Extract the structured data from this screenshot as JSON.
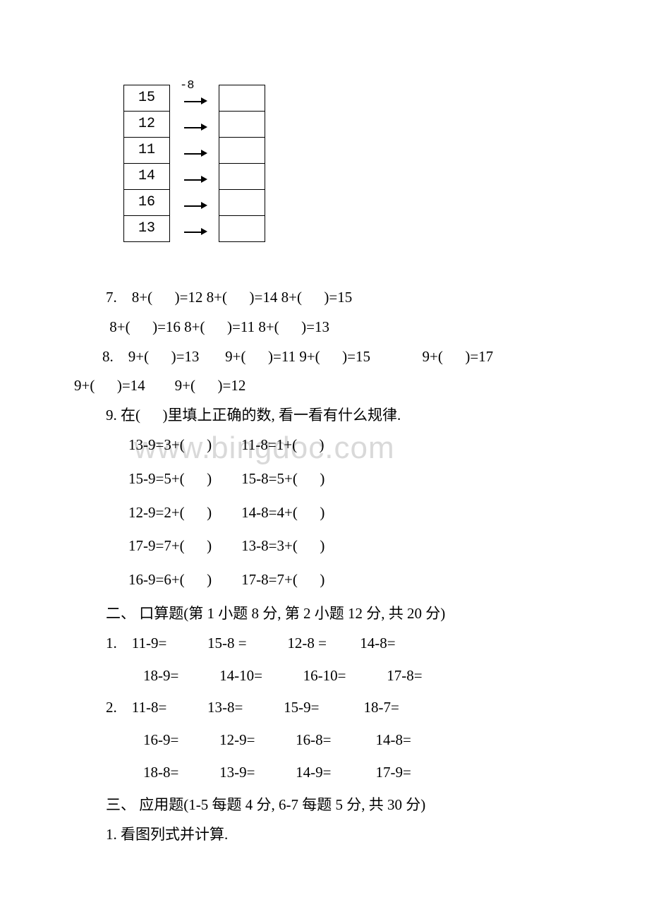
{
  "watermark": "www.bingdoc.com",
  "table": {
    "header_label": "-8",
    "left": [
      "15",
      "12",
      "11",
      "14",
      "16",
      "13"
    ],
    "right": [
      "",
      "",
      "",
      "",
      "",
      ""
    ]
  },
  "q7": {
    "line1": "7.    8+(      )=12 8+(      )=14 8+(      )=15",
    "line2": " 8+(      )=16 8+(      )=11 8+(      )=13"
  },
  "q8": {
    "line1": "8.    9+(      )=13       9+(      )=11 9+(      )=15              9+(      )=17",
    "line2": "9+(      )=14        9+(      )=12"
  },
  "q9": {
    "title": "9. 在(      )里填上正确的数, 看一看有什么规律.",
    "r1": "13-9=3+(      )        11-8=1+(      )",
    "r2": "15-9=5+(      )        15-8=5+(      )",
    "r3": "12-9=2+(      )        14-8=4+(      )",
    "r4": "17-9=7+(      )        13-8=3+(      )",
    "r5": "16-9=6+(      )        17-8=7+(      )"
  },
  "section2": {
    "title": "二、 口算题(第 1 小题 8 分, 第 2 小题 12 分, 共 20 分)",
    "q1l1": "1.    11-9=           15-8 =           12-8 =         14-8=",
    "q1l2": "    18-9=           14-10=           16-10=           17-8=",
    "q2l1": "2.    11-8=           13-8=           15-9=            18-7=",
    "q2l2": "    16-9=           12-9=           16-8=            14-8=",
    "q2l3": "    18-8=           13-9=           14-9=            17-9="
  },
  "section3": {
    "title": "三、 应用题(1-5 每题 4 分, 6-7 每题 5 分, 共 30 分)",
    "q1": "1. 看图列式并计算."
  }
}
